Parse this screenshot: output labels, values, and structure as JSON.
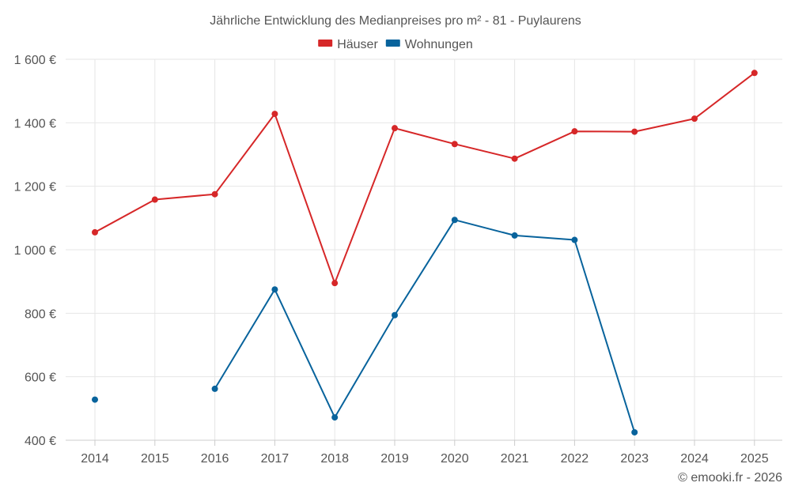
{
  "chart_data": {
    "type": "line",
    "title": "Jährliche Entwicklung des Medianpreises pro m² - 81 - Puylaurens",
    "x": [
      "2014",
      "2015",
      "2016",
      "2017",
      "2018",
      "2019",
      "2020",
      "2021",
      "2022",
      "2023",
      "2024",
      "2025"
    ],
    "y_ticks": [
      400,
      600,
      800,
      1000,
      1200,
      1400,
      1600
    ],
    "y_tick_labels": [
      "400 €",
      "600 €",
      "800 €",
      "1 000 €",
      "1 200 €",
      "1 400 €",
      "1 600 €"
    ],
    "ylim": [
      400,
      1600
    ],
    "xlabel": "",
    "ylabel": "",
    "grid": true,
    "legend_position": "top-center",
    "series": [
      {
        "name": "Häuser",
        "color": "#d62728",
        "values": [
          1055,
          1158,
          1175,
          1428,
          895,
          1383,
          1333,
          1287,
          1373,
          1372,
          1413,
          1557
        ]
      },
      {
        "name": "Wohnungen",
        "color": "#08639c",
        "values": [
          528,
          null,
          562,
          875,
          472,
          794,
          1094,
          1045,
          1031,
          425,
          null,
          null
        ]
      }
    ],
    "credit": "© emooki.fr - 2026"
  }
}
